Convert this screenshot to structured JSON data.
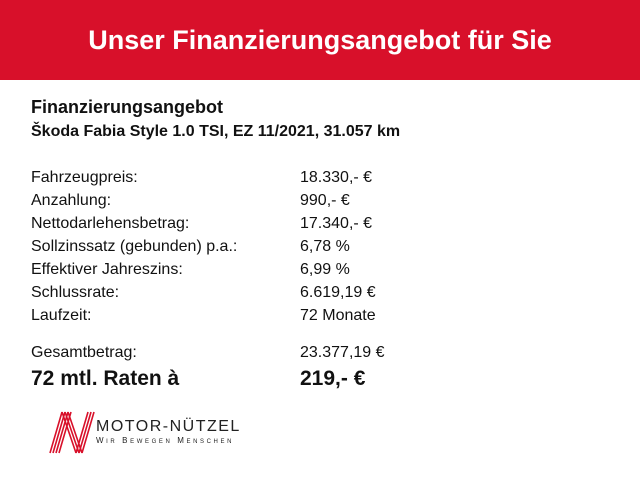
{
  "header": {
    "title": "Unser Finanzierungsangebot für Sie",
    "color": "#d8102a"
  },
  "offer": {
    "title": "Finanzierungsangebot",
    "vehicle": "Škoda Fabia Style 1.0 TSI, EZ 11/2021, 31.057 km"
  },
  "rows": [
    {
      "label": "Fahrzeugpreis:",
      "value": "18.330,- €"
    },
    {
      "label": "Anzahlung:",
      "value": "990,- €"
    },
    {
      "label": "Nettodarlehensbetrag:",
      "value": "17.340,- €"
    },
    {
      "label": "Sollzinssatz (gebunden) p.a.:",
      "value": "6,78 %"
    },
    {
      "label": "Effektiver Jahreszins:",
      "value": "6,99 %"
    },
    {
      "label": "Schlussrate:",
      "value": "6.619,19 €"
    },
    {
      "label": "Laufzeit:",
      "value": "72 Monate"
    }
  ],
  "total": {
    "label": "Gesamtbetrag:",
    "value": "23.377,19 €"
  },
  "rate": {
    "label": "72 mtl. Raten à",
    "value": "219,- €"
  },
  "logo": {
    "name": "MOTOR-NÜTZEL",
    "tagline": "Wir Bewegen Menschen"
  }
}
